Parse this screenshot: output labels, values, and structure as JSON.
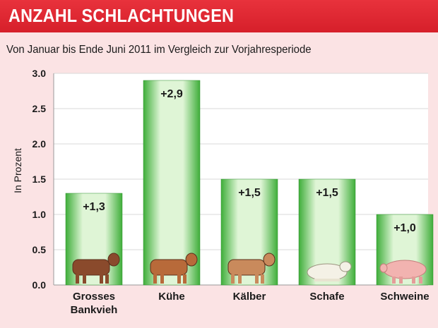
{
  "header": {
    "title": "ANZAHL SCHLACHTUNGEN",
    "subtitle": "Von Januar bis Ende Juni 2011 im Vergleich zur Vorjahresperiode"
  },
  "colors": {
    "title_bar": "#d61f2a",
    "background": "#fbe3e4",
    "plot_background": "#ffffff",
    "bar_light": "#dff5d6",
    "bar_dark": "#3fae3a"
  },
  "chart_data": {
    "type": "bar",
    "title": "ANZAHL SCHLACHTUNGEN",
    "subtitle": "Von Januar bis Ende Juni 2011 im Vergleich zur Vorjahresperiode",
    "ylabel": "In Prozent",
    "xlabel": "",
    "ylim": [
      0,
      3.0
    ],
    "yticks": [
      "0.0",
      "0.5",
      "1.0",
      "1.5",
      "2.0",
      "2.5",
      "3.0"
    ],
    "grid": true,
    "categories": [
      [
        "Grosses",
        "Bankvieh"
      ],
      [
        "Kühe"
      ],
      [
        "Kälber"
      ],
      [
        "Schafe"
      ],
      [
        "Schweine"
      ]
    ],
    "values": [
      1.3,
      2.9,
      1.5,
      1.5,
      1.0
    ],
    "value_labels": [
      "+1,3",
      "+2,9",
      "+1,5",
      "+1,5",
      "+1,0"
    ],
    "icons": [
      "cattle-icon",
      "cow-icon",
      "calf-icon",
      "sheep-icon",
      "pig-icon"
    ]
  }
}
